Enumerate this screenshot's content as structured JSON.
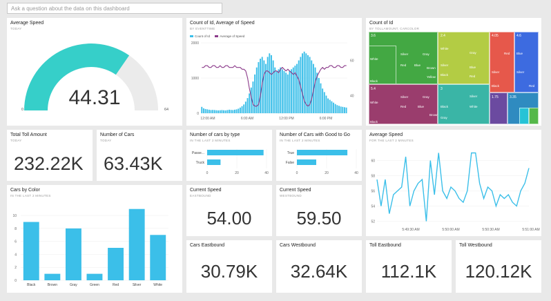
{
  "qa": {
    "placeholder": "Ask a question about the data on this dashboard"
  },
  "colors": {
    "accent": "#3bbfe9",
    "gauge": "#36cfc9",
    "gauge_bg": "#ebebeb",
    "line2": "#8b3a8a"
  },
  "tiles": {
    "avg_speed": {
      "title": "Average Speed",
      "subtitle": "TODAY",
      "value": "44.31",
      "min": "0",
      "max": "64",
      "level": 44.31,
      "range": [
        0,
        64
      ]
    },
    "count_speed": {
      "title": "Count of Id, Average of Speed",
      "subtitle": "BY EVENTTIME",
      "legend": [
        "Count of Id",
        "Average of Speed"
      ]
    },
    "treemap": {
      "title": "Count of Id",
      "subtitle": "BY TOLLAMOUNT, CARCOLOR"
    },
    "total_toll": {
      "title": "Total Toll Amount",
      "subtitle": "TODAY",
      "value": "232.22K"
    },
    "num_cars": {
      "title": "Number of Cars",
      "subtitle": "TODAY",
      "value": "63.43K"
    },
    "cars_by_type": {
      "title": "Number of cars by type",
      "subtitle": "IN THE LAST 2 MINUTES"
    },
    "good_to_go": {
      "title": "Number of Cars with Good to Go",
      "subtitle": "IN THE LAST 2 MINUTES"
    },
    "avg_speed_2": {
      "title": "Average Speed",
      "subtitle": "FOR THE LAST 2 MINUTES"
    },
    "cars_by_color": {
      "title": "Cars by Color",
      "subtitle": "IN THE LAST 2 MINUTES"
    },
    "cur_east": {
      "title": "Current Speed",
      "subtitle": "EASTBOUND",
      "value": "54.00"
    },
    "cur_west": {
      "title": "Current Speed",
      "subtitle": "WESTBOUND",
      "value": "59.50"
    },
    "cars_east": {
      "title": "Cars Eastbound",
      "value": "30.79K"
    },
    "cars_west": {
      "title": "Cars Westbound",
      "value": "32.64K"
    },
    "toll_east": {
      "title": "Toll Eastbound",
      "value": "112.1K"
    },
    "toll_west": {
      "title": "Toll Westbound",
      "value": "120.12K"
    }
  },
  "chart_data": [
    {
      "id": "count_speed",
      "type": "bar",
      "x_ticks": [
        "12:00 AM",
        "6:00 AM",
        "12:00 PM",
        "6:00 PM"
      ],
      "y_ticks": [
        "0",
        "1000",
        "2000"
      ],
      "y2_ticks": [
        "40",
        "60"
      ],
      "ylim": [
        0,
        2000
      ],
      "y2lim": [
        30,
        70
      ],
      "series": [
        {
          "name": "Count of Id",
          "values": [
            180,
            140,
            120,
            110,
            100,
            90,
            95,
            90,
            85,
            80,
            85,
            90,
            85,
            80,
            90,
            100,
            95,
            90,
            100,
            110,
            130,
            160,
            200,
            250,
            330,
            430,
            560,
            730,
            900,
            1100,
            1300,
            1450,
            1550,
            1600,
            1500,
            1400,
            1600,
            1700,
            1650,
            1500,
            1300,
            1200,
            1250,
            1300,
            1250,
            1200,
            1150,
            1100,
            1200,
            1250,
            1300,
            1350,
            1400,
            1500,
            1600,
            1700,
            1750,
            1700,
            1650,
            1600,
            1500,
            1400,
            1300,
            1150,
            1000,
            850,
            700,
            600,
            500,
            420,
            380,
            340,
            300,
            260,
            230,
            210,
            190,
            180,
            170,
            160
          ]
        },
        {
          "name": "Average of Speed",
          "values": [
            56,
            56,
            57,
            57,
            56,
            56,
            57,
            57,
            56,
            56,
            57,
            56,
            56,
            57,
            57,
            56,
            56,
            56,
            57,
            56,
            56,
            56,
            55,
            55,
            54,
            50,
            44,
            39,
            35,
            34,
            34,
            35,
            40,
            47,
            52,
            54,
            54,
            53,
            52,
            53,
            54,
            54,
            53,
            55,
            56,
            55,
            54,
            55,
            54,
            53,
            52,
            53,
            51,
            49,
            45,
            41,
            37,
            35,
            34,
            35,
            38,
            43,
            48,
            51,
            53,
            55,
            56,
            55,
            56,
            56,
            57,
            57,
            56,
            56,
            57,
            57,
            56,
            56,
            57,
            57
          ]
        }
      ]
    },
    {
      "id": "treemap",
      "type": "treemap",
      "groups": [
        {
          "label": "3.6",
          "color": "#43a843",
          "items": [
            {
              "label": "White"
            },
            {
              "label": "Silver"
            },
            {
              "label": "Gray"
            },
            {
              "label": "Red"
            },
            {
              "label": "Blue"
            },
            {
              "label": "Black"
            },
            {
              "label": "Brown"
            },
            {
              "label": "Yellow"
            }
          ]
        },
        {
          "label": "2.4",
          "color": "#b3cc44",
          "items": [
            {
              "label": "White"
            },
            {
              "label": "Gray"
            },
            {
              "label": "Silver"
            },
            {
              "label": "Blue"
            },
            {
              "label": "Black"
            },
            {
              "label": "Red"
            }
          ]
        },
        {
          "label": "4.05",
          "color": "#e6584b",
          "items": [
            {
              "label": "Silver"
            },
            {
              "label": "Red"
            },
            {
              "label": "Black"
            }
          ]
        },
        {
          "label": "4.6",
          "color": "#3d6be0",
          "items": [
            {
              "label": "Blue"
            },
            {
              "label": "Silver"
            },
            {
              "label": "Red"
            }
          ]
        },
        {
          "label": "5.4",
          "color": "#9a3d6d",
          "items": [
            {
              "label": "White"
            },
            {
              "label": "Silver"
            },
            {
              "label": "Gray"
            },
            {
              "label": "Red"
            },
            {
              "label": "Black"
            },
            {
              "label": "Blue"
            },
            {
              "label": "Brown"
            }
          ]
        },
        {
          "label": "3",
          "color": "#3ab5a6",
          "items": [
            {
              "label": "Black"
            },
            {
              "label": "White"
            },
            {
              "label": "Silver"
            },
            {
              "label": "Gray"
            }
          ]
        },
        {
          "label": "1.75",
          "color": "#6b4aa0",
          "items": []
        },
        {
          "label": "3.35",
          "color": "#2f8bc0",
          "items": []
        }
      ]
    },
    {
      "id": "cars_by_type",
      "type": "bar",
      "orientation": "horizontal",
      "categories": [
        "Passe...",
        "Truck"
      ],
      "values": [
        38,
        9
      ],
      "x_ticks": [
        "0",
        "20",
        "40"
      ],
      "xlim": [
        0,
        40
      ]
    },
    {
      "id": "good_to_go",
      "type": "bar",
      "orientation": "horizontal",
      "categories": [
        "True",
        "False"
      ],
      "values": [
        34,
        13
      ],
      "x_ticks": [
        "0",
        "20",
        "40"
      ],
      "xlim": [
        0,
        40
      ]
    },
    {
      "id": "avg_speed_2",
      "type": "line",
      "x_ticks": [
        "5:49:30 AM",
        "5:50:00 AM",
        "5:50:30 AM",
        "5:51:00 AM"
      ],
      "y_ticks": [
        "52",
        "54",
        "56",
        "58",
        "60"
      ],
      "ylim": [
        51.5,
        61.5
      ],
      "values": [
        57.5,
        54,
        57.5,
        53,
        55.5,
        56,
        56.5,
        60.5,
        54,
        56,
        57,
        57.5,
        52,
        60,
        55.5,
        61,
        56,
        55,
        56.5,
        56,
        55,
        54.5,
        56,
        61,
        61,
        57,
        55,
        56.5,
        56,
        54,
        55.5,
        55,
        55.5,
        54.5,
        54,
        56,
        57,
        59
      ]
    },
    {
      "id": "cars_by_color",
      "type": "bar",
      "categories": [
        "Black",
        "Brown",
        "Gray",
        "Green",
        "Red",
        "Silver",
        "White"
      ],
      "values": [
        9,
        1,
        8,
        1,
        5,
        11,
        7
      ],
      "y_ticks": [
        "0",
        "2",
        "4",
        "6",
        "8",
        "10"
      ],
      "ylim": [
        0,
        11.5
      ]
    }
  ]
}
